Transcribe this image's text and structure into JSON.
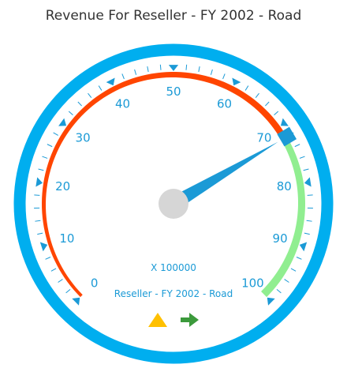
{
  "chart_data": {
    "type": "gauge",
    "title": "Revenue For Reseller - FY 2002 - Road",
    "scale": {
      "min": 0,
      "max": 100,
      "major_interval": 10,
      "minor_per_major": 4,
      "tick_labels": [
        "0",
        "10",
        "20",
        "30",
        "40",
        "50",
        "60",
        "70",
        "80",
        "90",
        "100"
      ]
    },
    "ranges": [
      {
        "from": 0,
        "to": 72,
        "color": "#ff4500"
      },
      {
        "from": 72,
        "to": 100,
        "color": "#90ee90"
      }
    ],
    "pointer_value": 72,
    "multiplier_label": "X 100000",
    "subtitle": "Reseller - FY 2002 - Road",
    "indicators": [
      {
        "icon": "warning-triangle-icon",
        "color": "#ffc000"
      },
      {
        "icon": "right-arrow-icon",
        "color": "#3c9a3c"
      }
    ]
  },
  "colors": {
    "frame": "#00aeef",
    "accent": "#1b9ad6",
    "needle": "#1b9ad6",
    "hub": "#d6d6d6",
    "title": "#333333"
  }
}
